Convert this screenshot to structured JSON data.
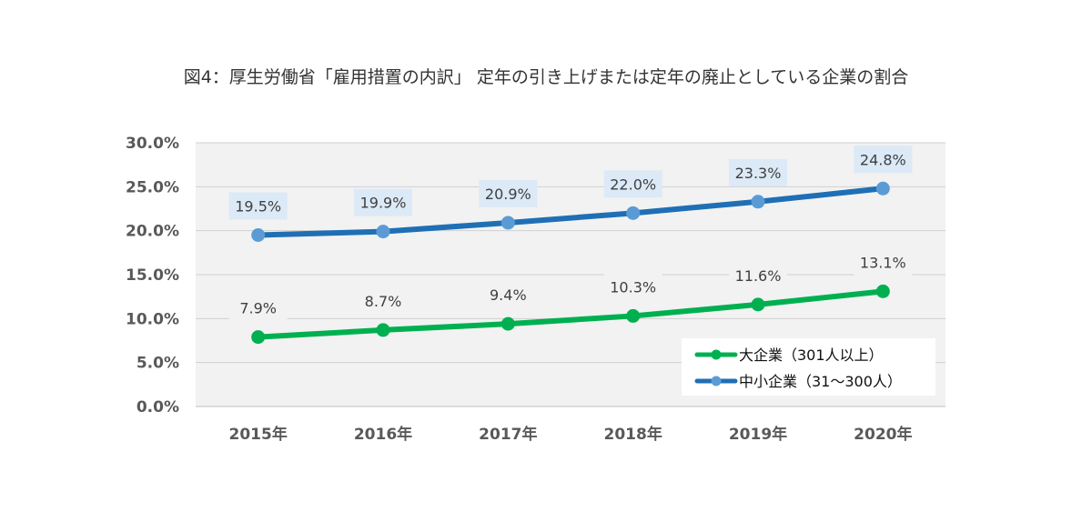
{
  "chart_data": {
    "type": "line",
    "title": "図4：厚生労働省「雇用措置の内訳」 定年の引き上げまたは定年の廃止としている企業の割合",
    "categories": [
      "2015年",
      "2016年",
      "2017年",
      "2018年",
      "2019年",
      "2020年"
    ],
    "y_ticks": [
      "0.0%",
      "5.0%",
      "10.0%",
      "15.0%",
      "20.0%",
      "25.0%",
      "30.0%"
    ],
    "ylim": [
      0,
      30
    ],
    "grid": true,
    "legend_position": "bottom-right",
    "series": [
      {
        "name": "大企業（301人以上）",
        "values": [
          7.9,
          8.7,
          9.4,
          10.3,
          11.6,
          13.1
        ],
        "labels": [
          "7.9%",
          "8.7%",
          "9.4%",
          "10.3%",
          "11.6%",
          "13.1%"
        ],
        "color": "#00b050",
        "label_bg": "#f2f2f2"
      },
      {
        "name": "中小企業（31～300人）",
        "values": [
          19.5,
          19.9,
          20.9,
          22.0,
          23.3,
          24.8
        ],
        "labels": [
          "19.5%",
          "19.9%",
          "20.9%",
          "22.0%",
          "23.3%",
          "24.8%"
        ],
        "color": "#1f6fb5",
        "marker_color": "#5b9bd5",
        "label_bg": "#dce9f6"
      }
    ]
  }
}
